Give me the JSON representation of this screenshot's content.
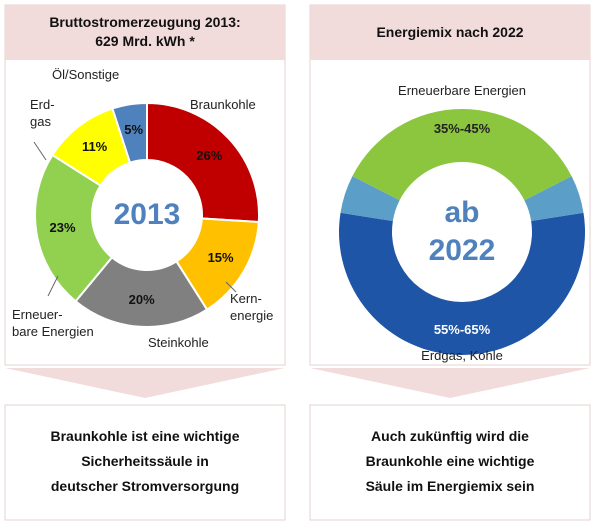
{
  "chart_data": [
    {
      "type": "pie",
      "title": "Bruttostromerzeugung 2013:\n629 Mrd. kWh *",
      "center_label": "2013",
      "categories": [
        "Braunkohle",
        "Kern-\nenergie",
        "Steinkohle",
        "Erneuer-\nbare Energien",
        "Erd-\ngas",
        "Öl/Sonstige"
      ],
      "values": [
        26,
        15,
        20,
        23,
        11,
        5
      ],
      "value_labels": [
        "26%",
        "15%",
        "20%",
        "23%",
        "11%",
        "5%"
      ],
      "colors": [
        "#c00000",
        "#ffc000",
        "#808080",
        "#92d050",
        "#ffff00",
        "#4f81bd"
      ],
      "footer": "Braunkohle ist eine wichtige\nSicherheitssäule in\ndeutscher Stromversorgung"
    },
    {
      "type": "range-donut",
      "title": "Energiemix nach 2022",
      "center_label": "ab\n2022",
      "categories": [
        "Erneuerbare Energien",
        "Erdgas, Kohle"
      ],
      "values": [
        [
          35,
          45
        ],
        [
          55,
          65
        ]
      ],
      "value_labels": [
        "35%-45%",
        "55%-65%"
      ],
      "colors": [
        "#8cc63f",
        "#1f55a6"
      ],
      "footer": "Auch zukünftig wird die\nBraunkohle eine wichtige\nSäule im Energiemix sein"
    }
  ]
}
